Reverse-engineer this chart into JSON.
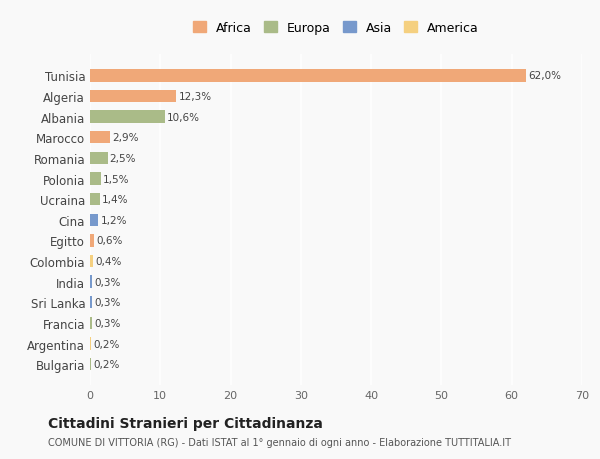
{
  "countries": [
    "Tunisia",
    "Algeria",
    "Albania",
    "Marocco",
    "Romania",
    "Polonia",
    "Ucraina",
    "Cina",
    "Egitto",
    "Colombia",
    "India",
    "Sri Lanka",
    "Francia",
    "Argentina",
    "Bulgaria"
  ],
  "values": [
    62.0,
    12.3,
    10.6,
    2.9,
    2.5,
    1.5,
    1.4,
    1.2,
    0.6,
    0.4,
    0.3,
    0.3,
    0.3,
    0.2,
    0.2
  ],
  "labels": [
    "62,0%",
    "12,3%",
    "10,6%",
    "2,9%",
    "2,5%",
    "1,5%",
    "1,4%",
    "1,2%",
    "0,6%",
    "0,4%",
    "0,3%",
    "0,3%",
    "0,3%",
    "0,2%",
    "0,2%"
  ],
  "colors": [
    "#F0A878",
    "#F0A878",
    "#AABB88",
    "#F0A878",
    "#AABB88",
    "#AABB88",
    "#AABB88",
    "#7799CC",
    "#F0A878",
    "#F5D080",
    "#7799CC",
    "#7799CC",
    "#AABB88",
    "#F5D080",
    "#AABB88"
  ],
  "legend_labels": [
    "Africa",
    "Europa",
    "Asia",
    "America"
  ],
  "legend_colors": [
    "#F0A878",
    "#AABB88",
    "#7799CC",
    "#F5D080"
  ],
  "xlim": [
    0,
    70
  ],
  "xticks": [
    0,
    10,
    20,
    30,
    40,
    50,
    60,
    70
  ],
  "title": "Cittadini Stranieri per Cittadinanza",
  "subtitle": "COMUNE DI VITTORIA (RG) - Dati ISTAT al 1° gennaio di ogni anno - Elaborazione TUTTITALIA.IT",
  "bg_color": "#f9f9f9",
  "bar_height": 0.6
}
